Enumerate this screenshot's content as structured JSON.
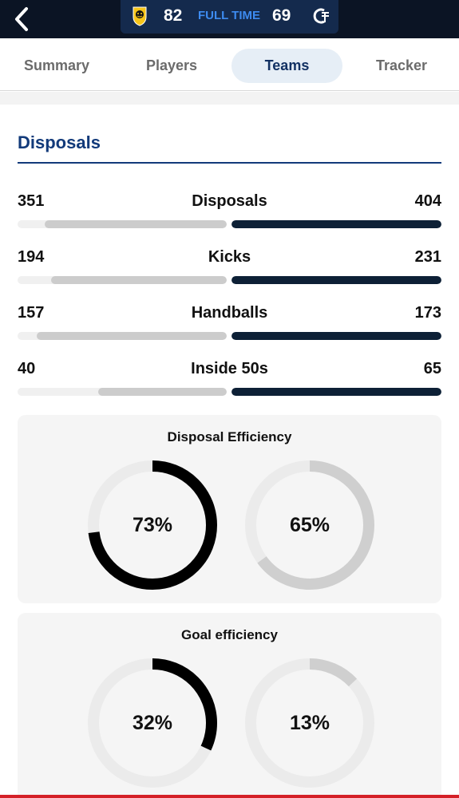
{
  "header": {
    "home_team_score": "82",
    "away_team_score": "69",
    "status": "FULL TIME",
    "home_logo_icon": "richmond-tiger-logo-icon",
    "away_logo_icon": "carlton-cfc-logo-icon"
  },
  "tabs": [
    {
      "label": "Summary",
      "active": false
    },
    {
      "label": "Players",
      "active": false
    },
    {
      "label": "Teams",
      "active": true
    },
    {
      "label": "Tracker",
      "active": false
    }
  ],
  "section": {
    "title": "Disposals"
  },
  "stats": [
    {
      "label": "Disposals",
      "home": 351,
      "away": 404
    },
    {
      "label": "Kicks",
      "home": 194,
      "away": 231
    },
    {
      "label": "Handballs",
      "home": 157,
      "away": 173
    },
    {
      "label": "Inside 50s",
      "home": 40,
      "away": 65
    }
  ],
  "efficiency": [
    {
      "title": "Disposal Efficiency",
      "home": {
        "value": 73,
        "label": "73%"
      },
      "away": {
        "value": 65,
        "label": "65%"
      }
    },
    {
      "title": "Goal efficiency",
      "home": {
        "value": 32,
        "label": "32%"
      },
      "away": {
        "value": 13,
        "label": "13%"
      }
    }
  ],
  "colors": {
    "header_bg": "#0b1424",
    "score_pill": "#142a4d",
    "status_blue": "#3d8bf0",
    "title_blue": "#123a7a",
    "home_bar": "#cccccc",
    "away_bar": "#0d2036",
    "home_ring": "#000000",
    "away_ring": "#cfcfcf",
    "ring_track": "#ebebeb",
    "accent_red": "#d42027"
  }
}
